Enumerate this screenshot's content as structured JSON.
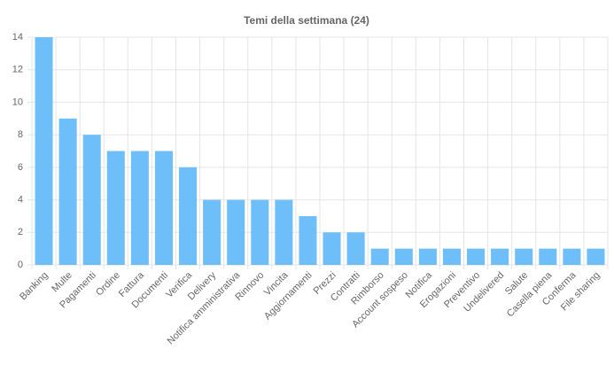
{
  "chart_data": {
    "type": "bar",
    "title": "Temi della settimana (24)",
    "categories": [
      "Banking",
      "Multe",
      "Pagamenti",
      "Ordine",
      "Fattura",
      "Documenti",
      "Verifica",
      "Delivery",
      "Notifica amministrativa",
      "Rinnovo",
      "Vincita",
      "Aggiornamenti",
      "Prezzi",
      "Contratti",
      "Rimborso",
      "Account sospeso",
      "Notifica",
      "Erogazioni",
      "Preventivo",
      "Undelivered",
      "Salute",
      "Casella piena",
      "Conferma",
      "File sharing"
    ],
    "values": [
      14,
      9,
      8,
      7,
      7,
      7,
      6,
      4,
      4,
      4,
      4,
      3,
      2,
      2,
      1,
      1,
      1,
      1,
      1,
      1,
      1,
      1,
      1,
      1
    ],
    "color": "#6ebef9",
    "ylim": [
      0,
      14
    ],
    "yticks": [
      0,
      2,
      4,
      6,
      8,
      10,
      12,
      14
    ],
    "grid": true
  }
}
